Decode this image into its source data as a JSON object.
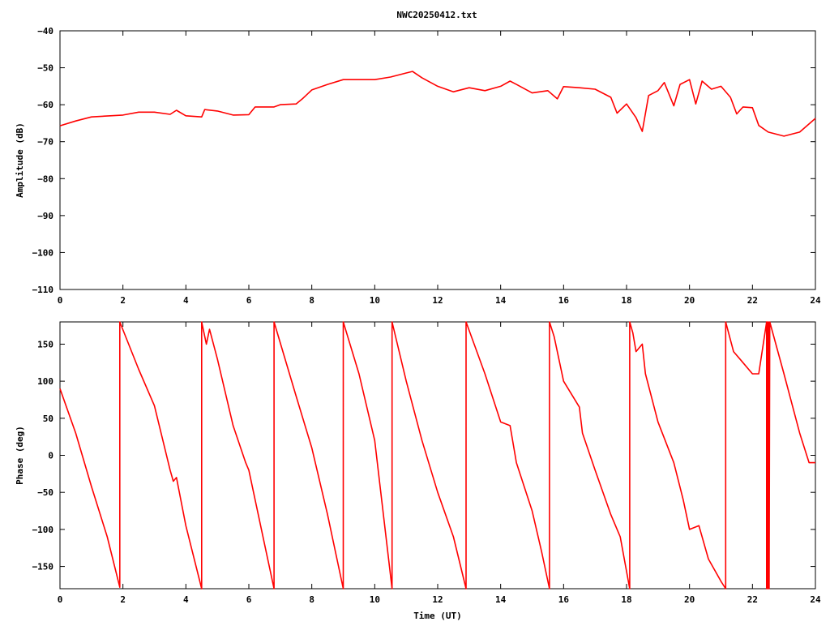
{
  "title": "NWC20250412.txt",
  "chart_data": [
    {
      "type": "line",
      "title": "NWC20250412.txt",
      "xlabel": "",
      "ylabel": "Amplitude (dB)",
      "xlim": [
        0,
        24
      ],
      "ylim": [
        -110,
        -40
      ],
      "xticks": [
        0,
        2,
        4,
        6,
        8,
        10,
        12,
        14,
        16,
        18,
        20,
        22,
        24
      ],
      "yticks": [
        -110,
        -100,
        -90,
        -80,
        -70,
        -60,
        -50,
        -40
      ],
      "grid": false,
      "color": "#ff0000",
      "x": [
        0,
        0.5,
        1,
        2,
        2.5,
        3,
        3.5,
        3.7,
        4,
        4.5,
        4.6,
        5,
        5.5,
        6,
        6.2,
        6.8,
        7,
        7.5,
        7.7,
        8,
        8.5,
        9,
        9.5,
        10,
        10.5,
        11,
        11.2,
        11.5,
        12,
        12.5,
        13,
        13.5,
        14,
        14.3,
        14.5,
        15,
        15.5,
        15.8,
        16,
        16.5,
        17,
        17.5,
        17.7,
        18,
        18.3,
        18.5,
        18.7,
        19,
        19.2,
        19.5,
        19.7,
        20,
        20.2,
        20.4,
        20.7,
        21,
        21.3,
        21.5,
        21.7,
        22,
        22.2,
        22.5,
        23,
        23.5,
        24
      ],
      "y": [
        -65.7,
        -64.4,
        -63.3,
        -62.8,
        -62,
        -62,
        -62.6,
        -61.5,
        -63,
        -63.3,
        -61.3,
        -61.7,
        -62.8,
        -62.7,
        -60.6,
        -60.6,
        -60,
        -59.8,
        -58.4,
        -56,
        -54.5,
        -53.2,
        -53.2,
        -53.2,
        -52.5,
        -51.4,
        -51,
        -52.7,
        -55,
        -56.5,
        -55.4,
        -56.2,
        -55,
        -53.6,
        -54.5,
        -56.8,
        -56.2,
        -58.4,
        -55.1,
        -55.4,
        -55.8,
        -58,
        -62.3,
        -59.8,
        -63.5,
        -67.2,
        -57.5,
        -56.2,
        -54,
        -60.3,
        -54.5,
        -53.2,
        -59.8,
        -53.6,
        -55.8,
        -55,
        -58,
        -62.5,
        -60.6,
        -60.8,
        -65.6,
        -67.4,
        -68.5,
        -67.4,
        -63.7
      ]
    },
    {
      "type": "line",
      "title": "",
      "xlabel": "Time (UT)",
      "ylabel": "Phase (deg)",
      "xlim": [
        0,
        24
      ],
      "ylim": [
        -180,
        180
      ],
      "xticks": [
        0,
        2,
        4,
        6,
        8,
        10,
        12,
        14,
        16,
        18,
        20,
        22,
        24
      ],
      "yticks": [
        -150,
        -100,
        -50,
        0,
        50,
        100,
        150
      ],
      "grid": false,
      "color": "#ff0000",
      "x": [
        0,
        0.5,
        1,
        1.5,
        1.9,
        1.9,
        1.9,
        1.9,
        2.5,
        3,
        3.5,
        3.6,
        3.7,
        4,
        4.5,
        4.5,
        4.65,
        4.75,
        5,
        5.5,
        5.9,
        6,
        6.5,
        6.8,
        6.8,
        7.5,
        8,
        8.5,
        9,
        9,
        9.5,
        10,
        10.55,
        10.55,
        11,
        11.5,
        12,
        12.5,
        12.9,
        12.9,
        13.5,
        14,
        14.3,
        14.5,
        15,
        15.3,
        15.55,
        15.55,
        15.7,
        16,
        16.5,
        16.6,
        17,
        17.5,
        17.8,
        18.1,
        18.1,
        18.2,
        18.3,
        18.5,
        18.6,
        19,
        19.5,
        19.8,
        20,
        20.3,
        20.6,
        21,
        21.15,
        21.15,
        21.4,
        21.6,
        22,
        22.2,
        22.45,
        22.45,
        22.47,
        22.49,
        22.51,
        22.53,
        22.55,
        23,
        23.5,
        23.8,
        24
      ],
      "y": [
        90,
        30,
        -42,
        -110,
        -178,
        180,
        0,
        180,
        116,
        67,
        -20,
        -35,
        -30,
        -95,
        -180,
        180,
        150,
        170,
        130,
        40,
        -10,
        -20,
        -120,
        -180,
        180,
        80,
        10,
        -80,
        -180,
        180,
        110,
        20,
        -180,
        180,
        100,
        20,
        -50,
        -110,
        -180,
        180,
        110,
        45,
        40,
        -10,
        -75,
        -130,
        -180,
        180,
        160,
        100,
        65,
        30,
        -20,
        -80,
        -110,
        -180,
        180,
        165,
        140,
        150,
        110,
        45,
        -10,
        -60,
        -100,
        -95,
        -140,
        -170,
        -180,
        180,
        140,
        130,
        110,
        110,
        180,
        -180,
        180,
        -180,
        180,
        -180,
        180,
        110,
        30,
        -10,
        -10
      ]
    }
  ]
}
